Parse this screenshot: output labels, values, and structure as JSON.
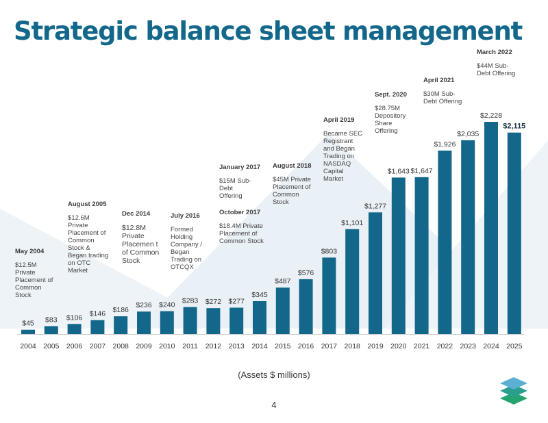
{
  "title": "Strategic balance sheet management",
  "caption": "(Assets $ millions)",
  "page_number": "4",
  "colors": {
    "bar": "#13678a",
    "title": "#13678a",
    "background_shape": "#e9f0f6"
  },
  "logo": {
    "name": "stacked-layers-logo",
    "colors": [
      "#5bb0d3",
      "#2b9f8f",
      "#25a46f"
    ]
  },
  "chart_data": {
    "type": "bar",
    "categories": [
      "2004",
      "2005",
      "2006",
      "2007",
      "2008",
      "2009",
      "2010",
      "2011",
      "2012",
      "2013",
      "2014",
      "2015",
      "2016",
      "2017",
      "2018",
      "2019",
      "2020",
      "2021",
      "2022",
      "2023",
      "2024",
      "2025"
    ],
    "values": [
      45,
      83,
      106,
      146,
      186,
      236,
      240,
      283,
      272,
      277,
      345,
      487,
      576,
      803,
      1101,
      1277,
      1643,
      1647,
      1926,
      2035,
      2228,
      2115
    ],
    "data_labels": [
      "$45",
      "$83",
      "$106",
      "$146",
      "$186",
      "$236",
      "$240",
      "$283",
      "$272",
      "$277",
      "$345",
      "$487",
      "$576",
      "$803",
      "$1,101",
      "$1,277",
      "$1,643",
      "$1,647",
      "$1,926",
      "$2,035",
      "$2,228",
      "$2,115"
    ],
    "highlighted_label_index": 21,
    "ylim": [
      0,
      2228
    ],
    "grid": false,
    "legend": "none"
  },
  "annotations": [
    {
      "id": "may-2004",
      "heading": "May 2004",
      "text": "$12.5M Private Placement of Common Stock"
    },
    {
      "id": "august-2005",
      "heading": "August 2005",
      "text": "$12.6M Private Placement of Common Stock & Began trading on OTC Market"
    },
    {
      "id": "dec-2014",
      "heading": "Dec 2014",
      "text": "$12.8M Private Placemen t of Common Stock"
    },
    {
      "id": "july-2016",
      "heading": "July 2016",
      "text": "Formed Holding Company / Began Trading on OTCQX"
    },
    {
      "id": "january-2017",
      "heading": "January 2017",
      "text": "$15M Sub-Debt Offering"
    },
    {
      "id": "october-2017",
      "heading": "October 2017",
      "text": "$18.4M Private Placement of Common Stock"
    },
    {
      "id": "august-2018",
      "heading": "August 2018",
      "text": "$45M Private Placement of Common Stock"
    },
    {
      "id": "april-2019",
      "heading": "April 2019",
      "text": "Became SEC Registrant and Began Trading on NASDAQ Capital Market"
    },
    {
      "id": "sept-2020",
      "heading": "Sept. 2020",
      "text": "$28.75M Depository Share Offering"
    },
    {
      "id": "april-2021",
      "heading": "April 2021",
      "text": "$30M Sub-Debt Offering"
    },
    {
      "id": "march-2022",
      "heading": "March 2022",
      "text": "$44M Sub-Debt Offering"
    }
  ]
}
